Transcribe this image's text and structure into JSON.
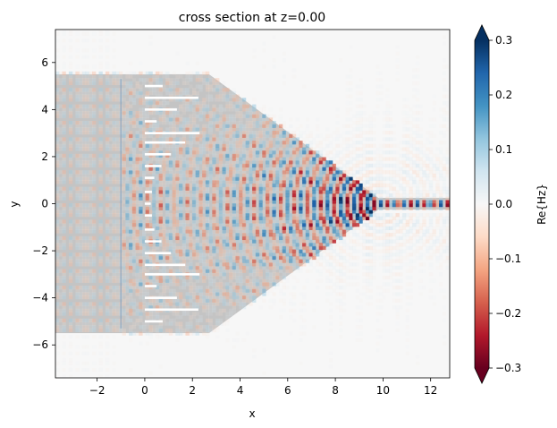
{
  "chart_data": {
    "type": "heatmap",
    "title": "cross section at z=0.00",
    "xlabel": "x",
    "ylabel": "y",
    "xlim": [
      -3.75,
      12.8
    ],
    "ylim": [
      -7.4,
      7.4
    ],
    "xticks": [
      -2,
      0,
      2,
      4,
      6,
      8,
      10,
      12
    ],
    "yticks": [
      -6,
      -4,
      -2,
      0,
      2,
      4,
      6
    ],
    "xtick_labels": [
      "−2",
      "0",
      "2",
      "4",
      "6",
      "8",
      "10",
      "12"
    ],
    "ytick_labels": [
      "−6",
      "−4",
      "−2",
      "0",
      "2",
      "4",
      "6"
    ],
    "colorbar": {
      "label": "Re{Hz}",
      "vmin": -0.3,
      "vmax": 0.3,
      "ticks": [
        0.3,
        0.2,
        0.1,
        0.0,
        -0.1,
        -0.2,
        -0.3
      ],
      "tick_labels": [
        "0.3",
        "0.2",
        "0.1",
        "0.0",
        "−0.1",
        "−0.2",
        "−0.3"
      ],
      "extend": "both",
      "colormap": "RdBu_r",
      "colors": [
        "#67001f",
        "#b2182b",
        "#d6604d",
        "#f4a582",
        "#fddbc7",
        "#f7f7f7",
        "#d1e5f0",
        "#92c5de",
        "#4393c3",
        "#2166ac",
        "#053061"
      ]
    },
    "structure": {
      "waveguide_in": {
        "x": [
          -3.75,
          2.7
        ],
        "y": [
          -5.5,
          5.5
        ]
      },
      "taper": {
        "x": [
          2.7,
          9.8
        ],
        "y_start": [
          -5.5,
          5.5
        ],
        "y_end": [
          -0.25,
          0.25
        ]
      },
      "waveguide_out": {
        "x": [
          9.8,
          12.8
        ],
        "y": [
          -0.25,
          0.25
        ]
      },
      "grating_slots": [
        {
          "y": 5.0,
          "x0": 0.0,
          "x1": 0.75
        },
        {
          "y": 4.5,
          "x0": 0.0,
          "x1": 2.25
        },
        {
          "y": 4.0,
          "x0": 0.0,
          "x1": 1.35
        },
        {
          "y": 3.5,
          "x0": 0.0,
          "x1": 0.5
        },
        {
          "y": 3.0,
          "x0": 0.0,
          "x1": 2.3
        },
        {
          "y": 2.6,
          "x0": 0.0,
          "x1": 1.7
        },
        {
          "y": 2.1,
          "x0": 0.0,
          "x1": 1.1
        },
        {
          "y": 1.6,
          "x0": 0.0,
          "x1": 0.7
        },
        {
          "y": 1.1,
          "x0": 0.0,
          "x1": 0.4
        },
        {
          "y": 0.5,
          "x0": 0.0,
          "x1": 0.3
        },
        {
          "y": 0.0,
          "x0": 0.0,
          "x1": 0.25
        },
        {
          "y": -0.5,
          "x0": 0.0,
          "x1": 0.3
        },
        {
          "y": -1.1,
          "x0": 0.0,
          "x1": 0.4
        },
        {
          "y": -1.6,
          "x0": 0.0,
          "x1": 0.7
        },
        {
          "y": -2.1,
          "x0": 0.0,
          "x1": 1.1
        },
        {
          "y": -2.6,
          "x0": 0.0,
          "x1": 1.7
        },
        {
          "y": -3.0,
          "x0": 0.0,
          "x1": 2.3
        },
        {
          "y": -3.5,
          "x0": 0.0,
          "x1": 0.5
        },
        {
          "y": -4.0,
          "x0": 0.0,
          "x1": 1.35
        },
        {
          "y": -4.5,
          "x0": 0.0,
          "x1": 2.25
        },
        {
          "y": -5.0,
          "x0": 0.0,
          "x1": 0.75
        }
      ]
    },
    "field": {
      "source_x": -1.0,
      "focus": [
        9.9,
        0.0
      ],
      "wavelength": 0.56,
      "peak_amplitude": 0.3
    }
  }
}
